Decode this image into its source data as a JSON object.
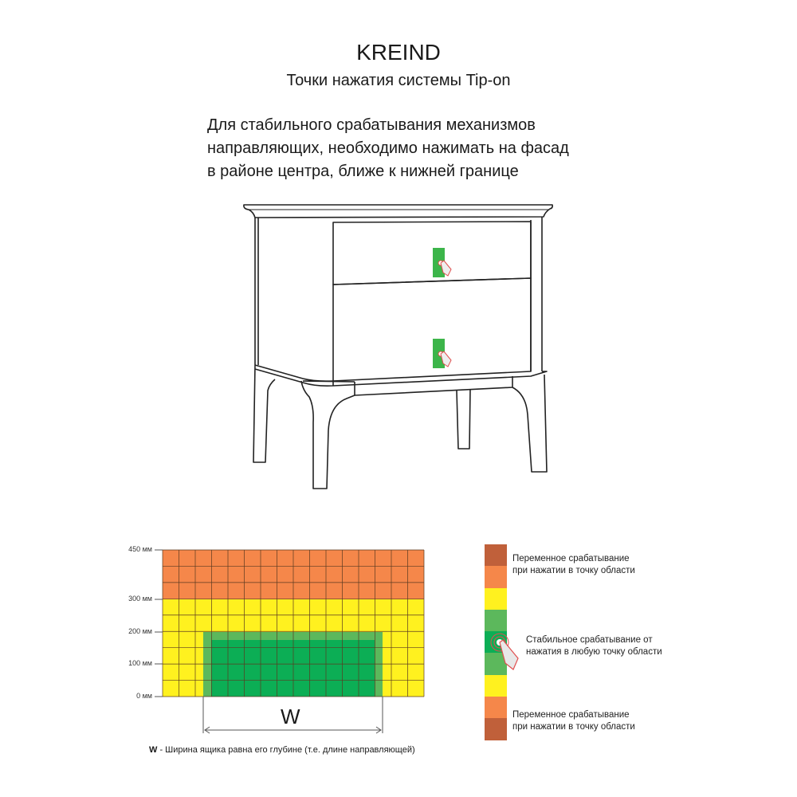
{
  "header": {
    "brand": "KREIND",
    "subtitle": "Точки нажатия системы Tip-on"
  },
  "instruction": {
    "lines": [
      "Для стабильного срабатывания механизмов",
      "направляющих, необходимо нажимать на фасад",
      "в районе центра, ближе к нижней границе"
    ]
  },
  "illustration": {
    "subject": "nightstand with two drawers",
    "press_zone_color": "#3cb54a",
    "icons": [
      "press-hand-icon",
      "press-hand-icon"
    ]
  },
  "zone_diagram": {
    "y_ticks": [
      "450 мм",
      "300 мм",
      "200 мм",
      "100 мм",
      "0 мм"
    ],
    "width_label": "W",
    "footnote_key": "W",
    "footnote_text": " - Ширина ящика равна его глубине (т.е. длине направляющей)",
    "colors": {
      "orange": "#f5874a",
      "yellow": "#fff11f",
      "light_green": "#5cb85c",
      "dark_green": "#0cae55",
      "brown": "#c0603a"
    }
  },
  "legend": {
    "items": [
      {
        "line1": "Переменное срабатывание",
        "line2": "при нажатии в точку области"
      },
      {
        "line1": "Стабильное срабатывание от",
        "line2": "нажатия в любую точку области"
      },
      {
        "line1": "Переменное срабатывание",
        "line2": "при нажатии в точку области"
      }
    ],
    "bar_colors": [
      "#c0603a",
      "#f5874a",
      "#fff11f",
      "#5cb85c",
      "#0cae55",
      "#5cb85c",
      "#fff11f",
      "#f5874a",
      "#c0603a"
    ]
  }
}
